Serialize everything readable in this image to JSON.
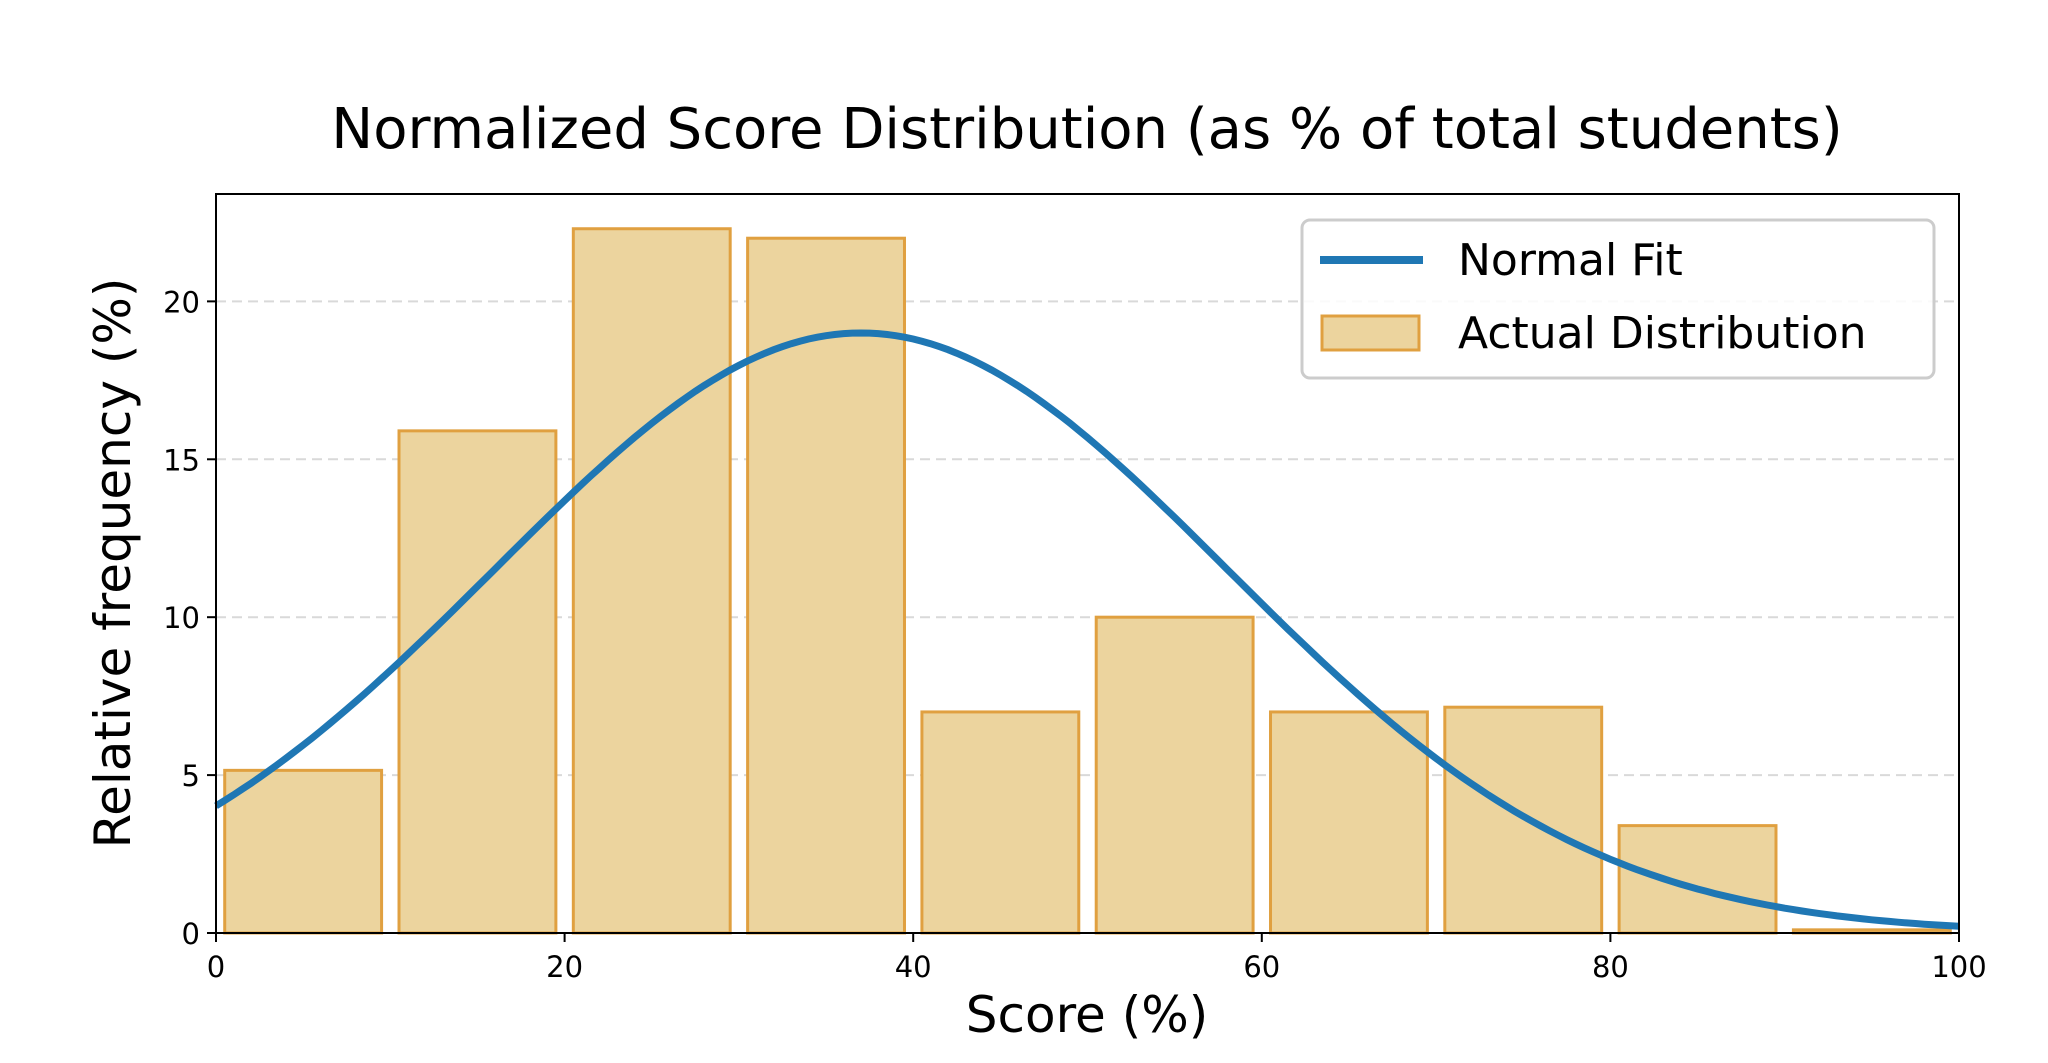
{
  "chart_data": {
    "type": "bar",
    "title": "Normalized Score Distribution (as % of total students)",
    "xlabel": "Score (%)",
    "ylabel": "Relative frequency (%)",
    "xlim": [
      0,
      100
    ],
    "ylim": [
      0,
      23.4
    ],
    "xticks": [
      0,
      20,
      40,
      60,
      80,
      100
    ],
    "yticks": [
      0,
      5,
      10,
      15,
      20
    ],
    "grid": "y dashed",
    "legend": {
      "placement": "top-right",
      "entries": [
        "Normal Fit",
        "Actual Distribution"
      ]
    },
    "series": [
      {
        "name": "Actual Distribution",
        "type": "bar",
        "bins": [
          [
            0,
            10
          ],
          [
            10,
            20
          ],
          [
            20,
            30
          ],
          [
            30,
            40
          ],
          [
            40,
            50
          ],
          [
            50,
            60
          ],
          [
            60,
            70
          ],
          [
            70,
            80
          ],
          [
            80,
            90
          ],
          [
            90,
            100
          ]
        ],
        "values": [
          5.15,
          15.9,
          22.3,
          22.0,
          7.0,
          10.0,
          7.0,
          7.15,
          3.4,
          0.1
        ],
        "fill": "#ecd49e",
        "edge": "#e0a040"
      },
      {
        "name": "Normal Fit",
        "type": "line",
        "mean": 37,
        "std": 21,
        "peak": 19.0,
        "color": "#1f77b4"
      }
    ]
  }
}
